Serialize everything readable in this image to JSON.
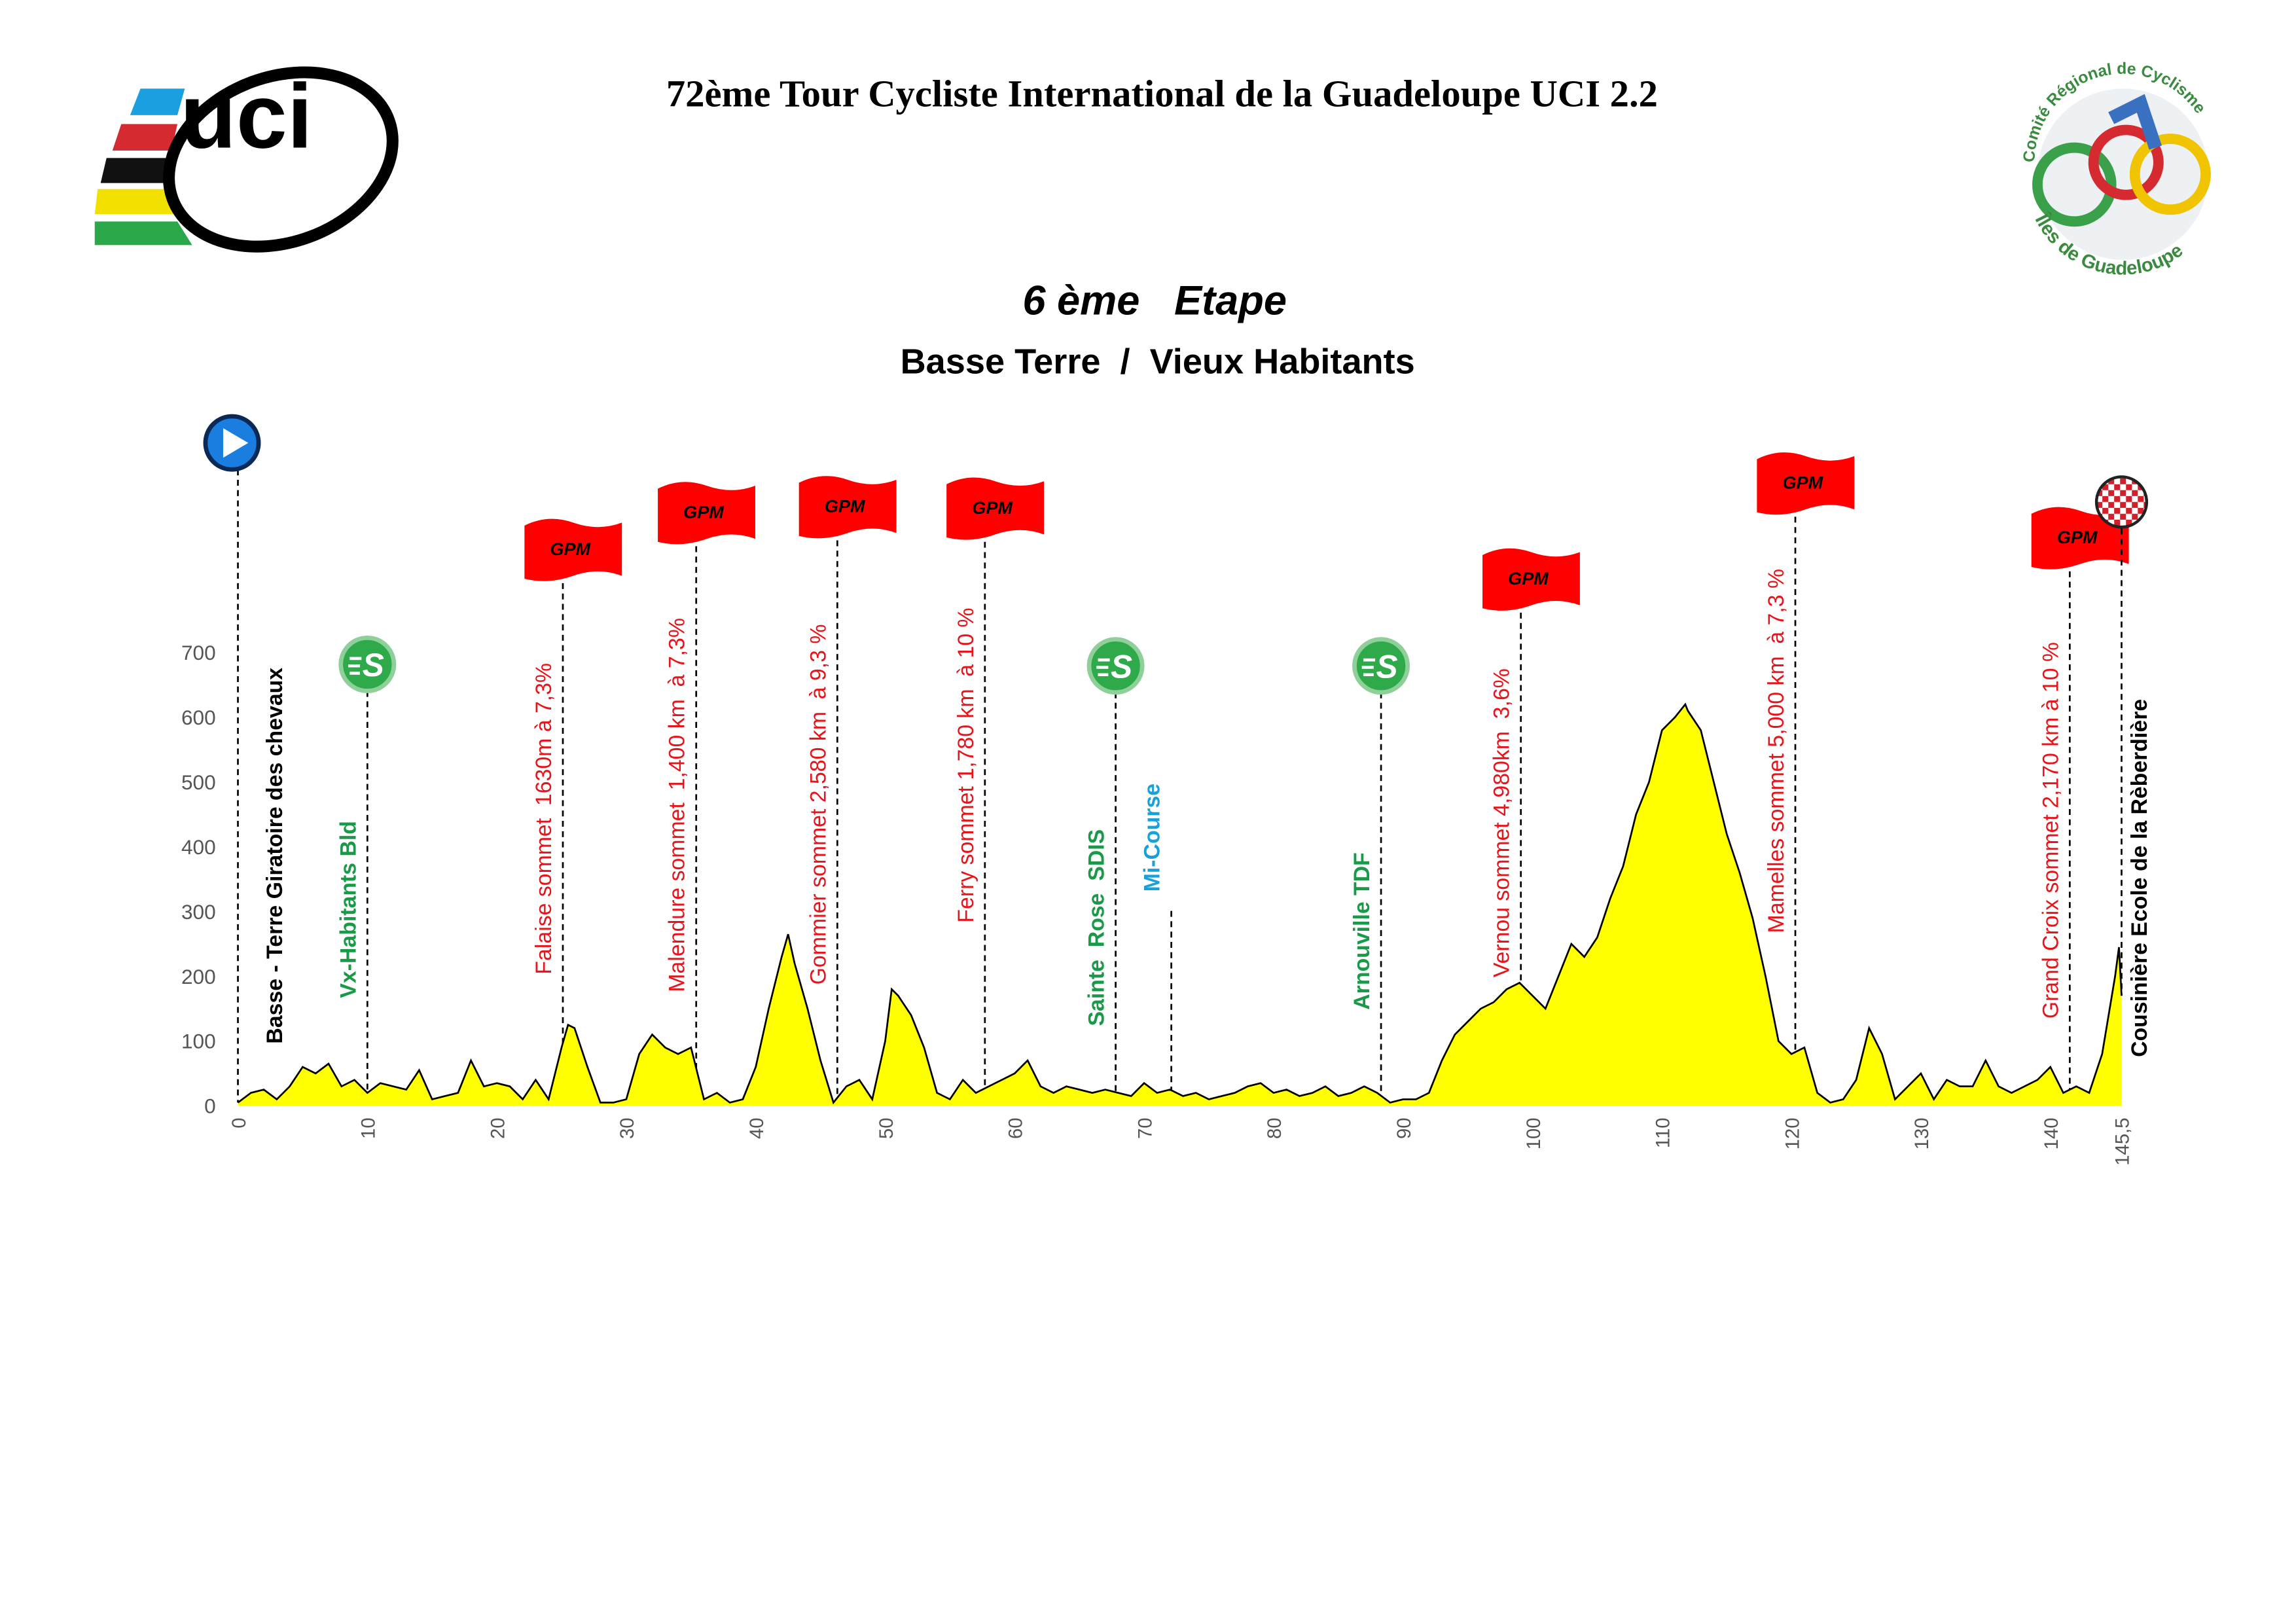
{
  "header": {
    "title": "72ème Tour Cycliste International de la Guadeloupe UCI 2.2",
    "stage": "6 ème   Etape",
    "route": "Basse Terre  /  Vieux Habitants"
  },
  "logos": {
    "uci": "uci",
    "regional_top": "Comité Régional de Cyclisme",
    "regional_bottom": "Îles de Guadeloupe"
  },
  "chart_data": {
    "type": "area",
    "color": "#ffff00",
    "xlim": [
      0,
      145.5
    ],
    "ylim": [
      0,
      700
    ],
    "xticks": [
      0,
      10,
      20,
      30,
      40,
      50,
      60,
      70,
      80,
      90,
      100,
      110,
      120,
      130,
      140,
      {
        "value": 145.5,
        "label": "145,5"
      }
    ],
    "yticks": [
      0,
      100,
      200,
      300,
      400,
      500,
      600,
      700
    ],
    "x": [
      0,
      1,
      2,
      3,
      4,
      5,
      6,
      7,
      8,
      9,
      10,
      11,
      12,
      13,
      14,
      15,
      16,
      17,
      18,
      19,
      20,
      21,
      22,
      23,
      24,
      25,
      25.5,
      26,
      27,
      28,
      29,
      30,
      31,
      32,
      33,
      34,
      35,
      36,
      37,
      38,
      39,
      40,
      41,
      42,
      42.5,
      43,
      44,
      45,
      46,
      47,
      48,
      49,
      50,
      50.5,
      51,
      52,
      53,
      54,
      55,
      56,
      57,
      58,
      59,
      60,
      61,
      62,
      63,
      64,
      65,
      66,
      67,
      68,
      69,
      70,
      71,
      72,
      73,
      74,
      75,
      76,
      77,
      78,
      79,
      80,
      81,
      82,
      83,
      84,
      85,
      86,
      87,
      88,
      89,
      90,
      91,
      92,
      93,
      94,
      95,
      96,
      97,
      98,
      99,
      100,
      101,
      102,
      103,
      104,
      105,
      106,
      107,
      108,
      109,
      110,
      111,
      111.8,
      112,
      113,
      114,
      115,
      116,
      117,
      118,
      119,
      120,
      121,
      122,
      123,
      124,
      125,
      126,
      127,
      128,
      129,
      130,
      131,
      132,
      133,
      134,
      135,
      136,
      137,
      138,
      139,
      140,
      141,
      142,
      143,
      144,
      145,
      145.3,
      145.5
    ],
    "values": [
      5,
      20,
      25,
      10,
      30,
      60,
      50,
      65,
      30,
      40,
      20,
      35,
      30,
      25,
      55,
      10,
      15,
      20,
      70,
      30,
      35,
      30,
      10,
      40,
      10,
      90,
      125,
      120,
      60,
      5,
      5,
      10,
      80,
      110,
      90,
      80,
      90,
      10,
      20,
      5,
      10,
      60,
      150,
      230,
      265,
      220,
      150,
      70,
      5,
      30,
      40,
      10,
      100,
      180,
      170,
      140,
      90,
      20,
      10,
      40,
      20,
      30,
      40,
      50,
      70,
      30,
      20,
      30,
      25,
      20,
      25,
      20,
      15,
      35,
      20,
      25,
      15,
      20,
      10,
      15,
      20,
      30,
      35,
      20,
      25,
      15,
      20,
      30,
      15,
      20,
      30,
      20,
      5,
      10,
      10,
      20,
      70,
      110,
      130,
      150,
      160,
      180,
      190,
      170,
      150,
      200,
      250,
      230,
      260,
      320,
      370,
      450,
      500,
      580,
      600,
      620,
      610,
      580,
      500,
      420,
      360,
      290,
      200,
      100,
      80,
      90,
      20,
      5,
      10,
      40,
      120,
      80,
      10,
      30,
      50,
      10,
      40,
      30,
      30,
      70,
      30,
      20,
      30,
      40,
      60,
      20,
      30,
      20,
      80,
      200,
      245,
      170
    ],
    "flag_text": "GPM",
    "sprint_text": "S",
    "markers": [
      {
        "km": 0,
        "label": "Basse - Terre Giratoire des chevaux",
        "kind": "start",
        "color": "#000000"
      },
      {
        "km": 10,
        "label": "Vx-Habitants Bld",
        "kind": "sprint",
        "color": "#1a9a48"
      },
      {
        "km": 25.1,
        "label": "Falaise sommet  1630m à 7,3%",
        "kind": "gpm",
        "color": "#e8141b"
      },
      {
        "km": 35.4,
        "label": "Malendure sommet  1,400 km  à 7,3%",
        "kind": "gpm",
        "color": "#e8141b"
      },
      {
        "km": 46.3,
        "label": "Gommier sommet 2,580 km  à 9,3 %",
        "kind": "gpm",
        "color": "#e8141b"
      },
      {
        "km": 57.7,
        "label": "Ferry sommet 1,780 km  à 10 %",
        "kind": "gpm",
        "color": "#e8141b"
      },
      {
        "km": 67.8,
        "label": "Sainte  Rose  SDIS",
        "kind": "sprint",
        "color": "#1a9a48"
      },
      {
        "km": 72.1,
        "label": "Mi-Course",
        "kind": "info",
        "color": "#1aa0d8"
      },
      {
        "km": 88.3,
        "label": "Arnouville TDF",
        "kind": "sprint",
        "color": "#1a9a48"
      },
      {
        "km": 99.1,
        "label": "Vernou sommet 4,980km  3,6%",
        "kind": "gpm",
        "color": "#e8141b"
      },
      {
        "km": 120.3,
        "label": "Mamelles sommet 5,000 km  à 7,3 %",
        "kind": "gpm",
        "color": "#e8141b"
      },
      {
        "km": 141.5,
        "label": "Grand Croix sommet 2,170 km à 10 %",
        "kind": "gpm",
        "color": "#e8141b"
      },
      {
        "km": 145.5,
        "label": "Cousinière Ecole de la Rèberdière",
        "kind": "finish",
        "color": "#000000"
      }
    ]
  }
}
